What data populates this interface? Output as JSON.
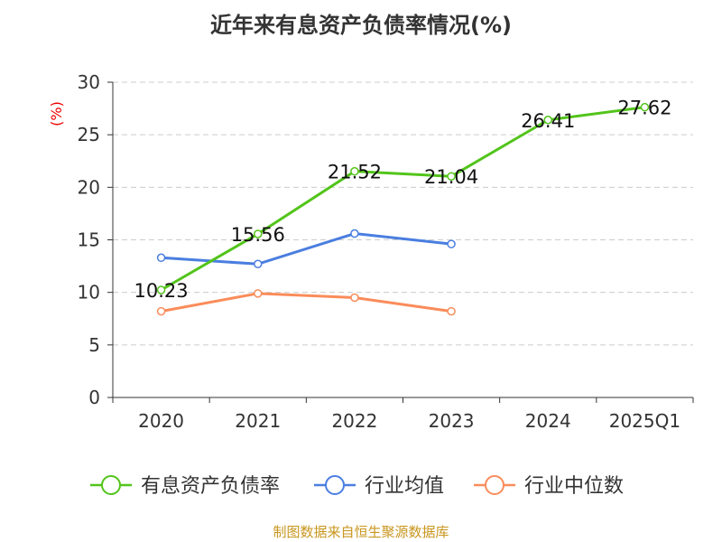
{
  "chart_data": {
    "type": "line",
    "title": "近年来有息资产负债率情况(%)",
    "ylabel": "(%)",
    "xlabel": "",
    "ylim": [
      0,
      30
    ],
    "yticks": [
      0,
      5,
      10,
      15,
      20,
      25,
      30
    ],
    "categories": [
      "2020",
      "2021",
      "2022",
      "2023",
      "2024",
      "2025Q1"
    ],
    "grid": true,
    "legend_position": "bottom",
    "series": [
      {
        "name": "有息资产负债率",
        "color": "#52c41a",
        "values": [
          10.23,
          15.56,
          21.52,
          21.04,
          26.41,
          27.62
        ],
        "labels": [
          "10.23",
          "15.56",
          "21.52",
          "21.04",
          "26.41",
          "27.62"
        ]
      },
      {
        "name": "行业均值",
        "color": "#4a7ee0",
        "values": [
          13.3,
          12.7,
          15.6,
          14.6,
          null,
          null
        ]
      },
      {
        "name": "行业中位数",
        "color": "#fa8c5a",
        "values": [
          8.2,
          9.9,
          9.5,
          8.2,
          null,
          null
        ]
      }
    ]
  },
  "footer": "制图数据来自恒生聚源数据库"
}
